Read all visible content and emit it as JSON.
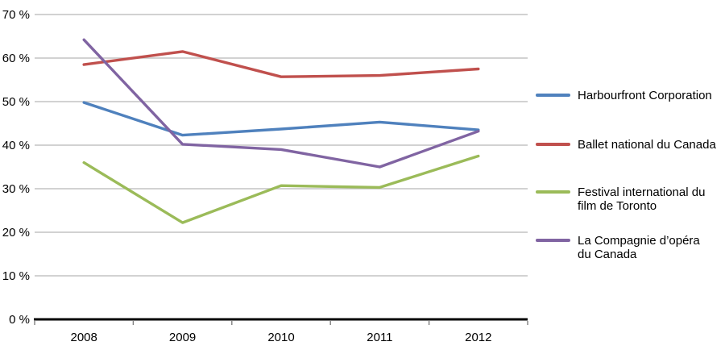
{
  "chart_data": {
    "type": "line",
    "title": "",
    "xlabel": "",
    "ylabel": "",
    "categories": [
      "2008",
      "2009",
      "2010",
      "2011",
      "2012"
    ],
    "series": [
      {
        "name": "Harbourfront Corporation",
        "color": "#4F81BD",
        "values": [
          49.8,
          42.3,
          43.7,
          45.3,
          43.5
        ]
      },
      {
        "name": "Ballet national du Canada",
        "color": "#C0504D",
        "values": [
          58.5,
          61.5,
          55.7,
          56.0,
          57.5
        ]
      },
      {
        "name": "Festival international du film de Toronto",
        "color": "#9BBB59",
        "values": [
          36.0,
          22.2,
          30.7,
          30.3,
          37.5
        ]
      },
      {
        "name": "La Compagnie d’opéra du Canada",
        "color": "#8064A2",
        "values": [
          64.2,
          40.2,
          39.0,
          35.0,
          43.2
        ]
      }
    ],
    "legend_lines": [
      [
        "Harbourfront Corporation"
      ],
      [
        "Ballet national du Canada"
      ],
      [
        "Festival international du",
        "film de Toronto"
      ],
      [
        "La Compagnie d’opéra",
        "du Canada"
      ]
    ],
    "ylim": [
      0,
      70
    ],
    "y_tick_step": 10,
    "y_tick_labels": [
      "0 %",
      "10 %",
      "20 %",
      "30 %",
      "40 %",
      "50 %",
      "60 %",
      "70 %"
    ],
    "grid": true,
    "legend_position": "right",
    "colors": {
      "gridline": "#C3C3C3",
      "axis_line": "#000000",
      "tick": "#7F7F7F",
      "text": "#000000",
      "background": "#FFFFFF"
    }
  }
}
